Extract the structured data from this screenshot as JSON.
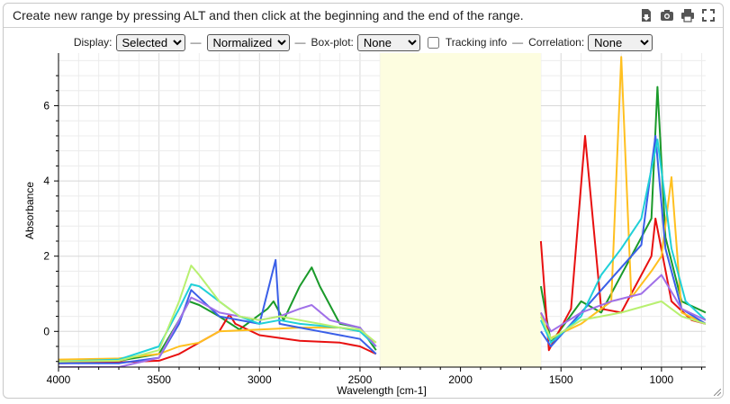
{
  "header": {
    "title": "Create new range by pressing ALT and then click at the beginning and the end of the range.",
    "icons": [
      "export-icon",
      "camera-icon",
      "print-icon",
      "fullscreen-icon"
    ]
  },
  "controls": {
    "display_label": "Display:",
    "display_value": "Selected",
    "normalize_value": "Normalized",
    "boxplot_label": "Box-plot:",
    "boxplot_value": "None",
    "tracking_label": "Tracking info",
    "tracking_checked": false,
    "correlation_label": "Correlation:",
    "correlation_value": "None",
    "separator": "—"
  },
  "chart_data": {
    "type": "line",
    "xlabel": "Wavelength [cm-1]",
    "ylabel": "Absorbance",
    "xlim": [
      4000,
      780
    ],
    "ylim": [
      -0.95,
      7.4
    ],
    "x_ticks": [
      4000,
      3500,
      3000,
      2500,
      2000,
      1500,
      1000
    ],
    "y_ticks": [
      0,
      2,
      4,
      6
    ],
    "grid": true,
    "excluded_range": {
      "from": 2400,
      "to": 1600,
      "color": "#fdfde0"
    },
    "series": [
      {
        "color": "#1a9a2a",
        "points": [
          [
            4000,
            -0.8
          ],
          [
            3700,
            -0.78
          ],
          [
            3500,
            -0.6
          ],
          [
            3400,
            0.3
          ],
          [
            3350,
            0.8
          ],
          [
            3300,
            0.7
          ],
          [
            3200,
            0.4
          ],
          [
            3100,
            0.05
          ],
          [
            2960,
            0.6
          ],
          [
            2930,
            0.8
          ],
          [
            2880,
            0.3
          ],
          [
            2800,
            1.2
          ],
          [
            2740,
            1.7
          ],
          [
            2700,
            1.2
          ],
          [
            2600,
            0.2
          ],
          [
            2500,
            0.1
          ],
          [
            2420,
            -0.5
          ],
          [
            1600,
            1.2
          ],
          [
            1550,
            -0.3
          ],
          [
            1400,
            0.8
          ],
          [
            1300,
            0.5
          ],
          [
            1150,
            2.0
          ],
          [
            1050,
            3.0
          ],
          [
            1020,
            6.5
          ],
          [
            980,
            2.5
          ],
          [
            900,
            0.8
          ],
          [
            780,
            0.5
          ]
        ]
      },
      {
        "color": "#e81010",
        "points": [
          [
            4000,
            -0.85
          ],
          [
            3700,
            -0.82
          ],
          [
            3500,
            -0.78
          ],
          [
            3400,
            -0.6
          ],
          [
            3300,
            -0.3
          ],
          [
            3200,
            0.0
          ],
          [
            3150,
            0.45
          ],
          [
            3120,
            0.2
          ],
          [
            3000,
            -0.1
          ],
          [
            2800,
            -0.25
          ],
          [
            2600,
            -0.3
          ],
          [
            2500,
            -0.4
          ],
          [
            2420,
            -0.6
          ],
          [
            1600,
            2.4
          ],
          [
            1560,
            -0.5
          ],
          [
            1450,
            0.6
          ],
          [
            1380,
            5.2
          ],
          [
            1300,
            0.6
          ],
          [
            1200,
            0.5
          ],
          [
            1050,
            2.0
          ],
          [
            1030,
            3.0
          ],
          [
            950,
            0.8
          ],
          [
            850,
            0.3
          ],
          [
            780,
            0.2
          ]
        ]
      },
      {
        "color": "#ffc020",
        "points": [
          [
            4000,
            -0.75
          ],
          [
            3700,
            -0.72
          ],
          [
            3500,
            -0.6
          ],
          [
            3400,
            -0.4
          ],
          [
            3300,
            -0.3
          ],
          [
            3200,
            0.0
          ],
          [
            3000,
            0.05
          ],
          [
            2800,
            0.1
          ],
          [
            2600,
            0.1
          ],
          [
            2500,
            0.0
          ],
          [
            2420,
            -0.3
          ],
          [
            1600,
            0.5
          ],
          [
            1560,
            -0.2
          ],
          [
            1400,
            0.2
          ],
          [
            1250,
            0.8
          ],
          [
            1200,
            7.3
          ],
          [
            1150,
            0.9
          ],
          [
            1050,
            1.6
          ],
          [
            1000,
            2.0
          ],
          [
            950,
            4.1
          ],
          [
            900,
            0.5
          ],
          [
            780,
            0.2
          ]
        ]
      },
      {
        "color": "#3a5fe8",
        "points": [
          [
            4000,
            -0.85
          ],
          [
            3700,
            -0.85
          ],
          [
            3500,
            -0.7
          ],
          [
            3400,
            0.2
          ],
          [
            3340,
            1.1
          ],
          [
            3300,
            0.9
          ],
          [
            3200,
            0.4
          ],
          [
            3000,
            0.2
          ],
          [
            2920,
            1.9
          ],
          [
            2900,
            0.2
          ],
          [
            2800,
            0.1
          ],
          [
            2700,
            0.0
          ],
          [
            2600,
            -0.1
          ],
          [
            2500,
            -0.2
          ],
          [
            2420,
            -0.6
          ],
          [
            1600,
            0.0
          ],
          [
            1550,
            -0.4
          ],
          [
            1400,
            0.5
          ],
          [
            1250,
            1.4
          ],
          [
            1100,
            2.3
          ],
          [
            1030,
            5.2
          ],
          [
            980,
            2.2
          ],
          [
            900,
            0.6
          ],
          [
            780,
            0.2
          ]
        ]
      },
      {
        "color": "#20d0d8",
        "points": [
          [
            4000,
            -0.8
          ],
          [
            3700,
            -0.75
          ],
          [
            3500,
            -0.4
          ],
          [
            3400,
            0.6
          ],
          [
            3340,
            1.25
          ],
          [
            3300,
            1.2
          ],
          [
            3200,
            0.8
          ],
          [
            3100,
            0.4
          ],
          [
            3000,
            0.2
          ],
          [
            2900,
            0.3
          ],
          [
            2800,
            0.2
          ],
          [
            2700,
            0.15
          ],
          [
            2600,
            0.1
          ],
          [
            2500,
            0.0
          ],
          [
            2420,
            -0.4
          ],
          [
            1600,
            0.3
          ],
          [
            1550,
            -0.3
          ],
          [
            1400,
            0.4
          ],
          [
            1300,
            1.5
          ],
          [
            1200,
            2.2
          ],
          [
            1100,
            3.0
          ],
          [
            1020,
            5.1
          ],
          [
            950,
            2.2
          ],
          [
            880,
            0.8
          ],
          [
            780,
            0.3
          ]
        ]
      },
      {
        "color": "#a070e8",
        "points": [
          [
            4000,
            -0.95
          ],
          [
            3700,
            -0.95
          ],
          [
            3500,
            -0.7
          ],
          [
            3400,
            0.3
          ],
          [
            3340,
            0.9
          ],
          [
            3300,
            0.8
          ],
          [
            3200,
            0.5
          ],
          [
            3000,
            0.3
          ],
          [
            2900,
            0.4
          ],
          [
            2800,
            0.6
          ],
          [
            2740,
            0.7
          ],
          [
            2650,
            0.3
          ],
          [
            2500,
            0.1
          ],
          [
            2420,
            -0.4
          ],
          [
            1600,
            0.5
          ],
          [
            1550,
            0.0
          ],
          [
            1400,
            0.5
          ],
          [
            1250,
            0.8
          ],
          [
            1100,
            1.0
          ],
          [
            1000,
            1.5
          ],
          [
            900,
            0.6
          ],
          [
            780,
            0.3
          ]
        ]
      },
      {
        "color": "#b8f070",
        "points": [
          [
            4000,
            -0.8
          ],
          [
            3700,
            -0.78
          ],
          [
            3500,
            -0.5
          ],
          [
            3400,
            0.8
          ],
          [
            3340,
            1.75
          ],
          [
            3300,
            1.5
          ],
          [
            3200,
            0.8
          ],
          [
            3100,
            0.4
          ],
          [
            3000,
            0.3
          ],
          [
            2900,
            0.4
          ],
          [
            2800,
            0.3
          ],
          [
            2700,
            0.2
          ],
          [
            2600,
            0.1
          ],
          [
            2500,
            0.05
          ],
          [
            2420,
            -0.3
          ],
          [
            1600,
            0.4
          ],
          [
            1550,
            -0.2
          ],
          [
            1400,
            0.3
          ],
          [
            1200,
            0.5
          ],
          [
            1000,
            0.8
          ],
          [
            900,
            0.4
          ],
          [
            780,
            0.2
          ]
        ]
      }
    ]
  }
}
